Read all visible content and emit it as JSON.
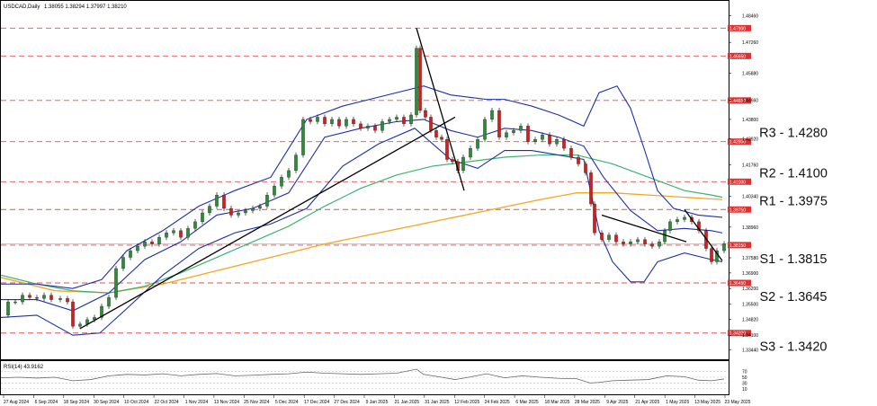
{
  "header": {
    "symbol_timeframe": "USDCAD,Daily",
    "ohlc": "1.38055 1.38294 1.37997 1.38210"
  },
  "rsi_header": "RSI(14) 43.9162",
  "chart_data": {
    "type": "candlestick",
    "x_labels": [
      "27 Aug 2024",
      "6 Sep 2024",
      "18 Sep 2024",
      "30 Sep 2024",
      "10 Oct 2024",
      "22 Oct 2024",
      "1 Nov 2024",
      "13 Nov 2024",
      "25 Nov 2024",
      "5 Dec 2024",
      "17 Dec 2024",
      "27 Dec 2024",
      "9 Jan 2025",
      "21 Jan 2025",
      "31 Jan 2025",
      "12 Feb 2025",
      "24 Feb 2025",
      "6 Mar 2025",
      "18 Mar 2025",
      "28 Mar 2025",
      "9 Apr 2025",
      "21 Apr 2025",
      "1 May 2025",
      "13 May 2025",
      "23 May 2025"
    ],
    "price_axis_ticks": [
      "1.48460",
      "1.47260",
      "1.45880",
      "1.44660",
      "1.43800",
      "1.42920",
      "1.41760",
      "1.40340",
      "1.38960",
      "1.37580",
      "1.36900",
      "1.36200",
      "1.35500",
      "1.34820",
      "1.34100",
      "1.33440"
    ],
    "ylim": [
      1.331,
      1.486
    ],
    "levels": [
      {
        "value": 1.479,
        "tag": "1.47900",
        "label": ""
      },
      {
        "value": 1.4665,
        "tag": "1.46650",
        "label": ""
      },
      {
        "value": 1.4465,
        "tag": "1.44650",
        "label": ""
      },
      {
        "value": 1.428,
        "tag": "1.42800",
        "label": "R3 - 1.4280"
      },
      {
        "value": 1.41,
        "tag": "1.41000",
        "label": "R2 - 1.4100"
      },
      {
        "value": 1.3975,
        "tag": "1.39750",
        "label": "R1 - 1.3975"
      },
      {
        "value": 1.3815,
        "tag": "1.38150",
        "label": "S1 - 1.3815"
      },
      {
        "value": 1.3645,
        "tag": "1.36450",
        "label": "S2 - 1.3645"
      },
      {
        "value": 1.342,
        "tag": "1.34200",
        "label": "S3 - 1.3420"
      }
    ],
    "current_price": 1.3821,
    "close_path": [
      [
        0,
        1.35
      ],
      [
        8,
        1.356
      ],
      [
        16,
        1.356
      ],
      [
        24,
        1.359
      ],
      [
        32,
        1.358
      ],
      [
        40,
        1.3575
      ],
      [
        48,
        1.359
      ],
      [
        56,
        1.357
      ],
      [
        66,
        1.3575
      ],
      [
        74,
        1.356
      ],
      [
        80,
        1.345
      ],
      [
        88,
        1.346
      ],
      [
        96,
        1.348
      ],
      [
        104,
        1.349
      ],
      [
        112,
        1.354
      ],
      [
        120,
        1.358
      ],
      [
        128,
        1.371
      ],
      [
        136,
        1.376
      ],
      [
        144,
        1.379
      ],
      [
        152,
        1.381
      ],
      [
        160,
        1.383
      ],
      [
        168,
        1.382
      ],
      [
        176,
        1.385
      ],
      [
        184,
        1.387
      ],
      [
        192,
        1.388
      ],
      [
        200,
        1.385
      ],
      [
        208,
        1.389
      ],
      [
        216,
        1.392
      ],
      [
        224,
        1.396
      ],
      [
        232,
        1.399
      ],
      [
        240,
        1.404
      ],
      [
        248,
        1.398
      ],
      [
        256,
        1.395
      ],
      [
        264,
        1.396
      ],
      [
        272,
        1.397
      ],
      [
        280,
        1.398
      ],
      [
        288,
        1.399
      ],
      [
        296,
        1.404
      ],
      [
        304,
        1.408
      ],
      [
        312,
        1.412
      ],
      [
        320,
        1.415
      ],
      [
        328,
        1.422
      ],
      [
        336,
        1.438
      ],
      [
        344,
        1.437
      ],
      [
        352,
        1.439
      ],
      [
        360,
        1.436
      ],
      [
        368,
        1.438
      ],
      [
        376,
        1.435
      ],
      [
        384,
        1.438
      ],
      [
        392,
        1.436
      ],
      [
        400,
        1.434
      ],
      [
        408,
        1.435
      ],
      [
        416,
        1.433
      ],
      [
        424,
        1.437
      ],
      [
        432,
        1.438
      ],
      [
        440,
        1.439
      ],
      [
        448,
        1.436
      ],
      [
        456,
        1.44
      ],
      [
        462,
        1.47
      ],
      [
        466,
        1.442
      ],
      [
        472,
        1.439
      ],
      [
        478,
        1.433
      ],
      [
        484,
        1.43
      ],
      [
        490,
        1.429
      ],
      [
        496,
        1.42
      ],
      [
        502,
        1.419
      ],
      [
        508,
        1.415
      ],
      [
        514,
        1.421
      ],
      [
        522,
        1.425
      ],
      [
        530,
        1.429
      ],
      [
        538,
        1.438
      ],
      [
        546,
        1.442
      ],
      [
        554,
        1.43
      ],
      [
        562,
        1.432
      ],
      [
        570,
        1.433
      ],
      [
        578,
        1.435
      ],
      [
        586,
        1.428
      ],
      [
        594,
        1.429
      ],
      [
        602,
        1.431
      ],
      [
        610,
        1.427
      ],
      [
        618,
        1.429
      ],
      [
        626,
        1.425
      ],
      [
        634,
        1.421
      ],
      [
        642,
        1.418
      ],
      [
        650,
        1.414
      ],
      [
        656,
        1.4
      ],
      [
        660,
        1.387
      ],
      [
        668,
        1.384
      ],
      [
        676,
        1.386
      ],
      [
        684,
        1.383
      ],
      [
        692,
        1.382
      ],
      [
        700,
        1.383
      ],
      [
        708,
        1.384
      ],
      [
        716,
        1.382
      ],
      [
        724,
        1.381
      ],
      [
        732,
        1.383
      ],
      [
        738,
        1.388
      ],
      [
        744,
        1.392
      ],
      [
        752,
        1.393
      ],
      [
        760,
        1.394
      ],
      [
        768,
        1.392
      ],
      [
        776,
        1.388
      ],
      [
        784,
        1.38
      ],
      [
        790,
        1.374
      ],
      [
        796,
        1.379
      ],
      [
        804,
        1.3821
      ]
    ],
    "bollinger_upper": [
      [
        0,
        1.364
      ],
      [
        40,
        1.364
      ],
      [
        80,
        1.362
      ],
      [
        112,
        1.366
      ],
      [
        140,
        1.379
      ],
      [
        180,
        1.388
      ],
      [
        220,
        1.399
      ],
      [
        260,
        1.406
      ],
      [
        300,
        1.412
      ],
      [
        340,
        1.438
      ],
      [
        380,
        1.444
      ],
      [
        420,
        1.448
      ],
      [
        470,
        1.453
      ],
      [
        500,
        1.449
      ],
      [
        520,
        1.448
      ],
      [
        540,
        1.447
      ],
      [
        560,
        1.447
      ],
      [
        590,
        1.444
      ],
      [
        620,
        1.44
      ],
      [
        648,
        1.435
      ],
      [
        665,
        1.45
      ],
      [
        685,
        1.453
      ],
      [
        700,
        1.443
      ],
      [
        715,
        1.425
      ],
      [
        730,
        1.406
      ],
      [
        748,
        1.398
      ],
      [
        775,
        1.395
      ],
      [
        802,
        1.394
      ]
    ],
    "bollinger_mid": [
      [
        0,
        1.357
      ],
      [
        40,
        1.357
      ],
      [
        80,
        1.352
      ],
      [
        120,
        1.36
      ],
      [
        160,
        1.375
      ],
      [
        200,
        1.383
      ],
      [
        240,
        1.395
      ],
      [
        280,
        1.398
      ],
      [
        320,
        1.405
      ],
      [
        360,
        1.43
      ],
      [
        400,
        1.434
      ],
      [
        440,
        1.437
      ],
      [
        470,
        1.438
      ],
      [
        500,
        1.433
      ],
      [
        530,
        1.43
      ],
      [
        560,
        1.434
      ],
      [
        590,
        1.433
      ],
      [
        620,
        1.43
      ],
      [
        648,
        1.426
      ],
      [
        670,
        1.412
      ],
      [
        700,
        1.397
      ],
      [
        730,
        1.388
      ],
      [
        760,
        1.389
      ],
      [
        790,
        1.388
      ],
      [
        802,
        1.387
      ]
    ],
    "bollinger_lower": [
      [
        0,
        1.349
      ],
      [
        40,
        1.35
      ],
      [
        80,
        1.341
      ],
      [
        110,
        1.342
      ],
      [
        140,
        1.353
      ],
      [
        180,
        1.368
      ],
      [
        220,
        1.38
      ],
      [
        260,
        1.387
      ],
      [
        300,
        1.391
      ],
      [
        340,
        1.398
      ],
      [
        380,
        1.417
      ],
      [
        420,
        1.427
      ],
      [
        460,
        1.434
      ],
      [
        500,
        1.42
      ],
      [
        530,
        1.416
      ],
      [
        560,
        1.424
      ],
      [
        590,
        1.424
      ],
      [
        620,
        1.422
      ],
      [
        648,
        1.42
      ],
      [
        665,
        1.388
      ],
      [
        680,
        1.374
      ],
      [
        700,
        1.365
      ],
      [
        715,
        1.365
      ],
      [
        730,
        1.374
      ],
      [
        760,
        1.378
      ],
      [
        790,
        1.375
      ],
      [
        802,
        1.374
      ]
    ],
    "ma_green": [
      [
        0,
        1.368
      ],
      [
        40,
        1.364
      ],
      [
        80,
        1.361
      ],
      [
        120,
        1.36
      ],
      [
        160,
        1.363
      ],
      [
        200,
        1.369
      ],
      [
        240,
        1.376
      ],
      [
        280,
        1.383
      ],
      [
        320,
        1.39
      ],
      [
        360,
        1.399
      ],
      [
        400,
        1.407
      ],
      [
        440,
        1.413
      ],
      [
        480,
        1.417
      ],
      [
        520,
        1.419
      ],
      [
        560,
        1.421
      ],
      [
        600,
        1.422
      ],
      [
        640,
        1.422
      ],
      [
        680,
        1.418
      ],
      [
        720,
        1.412
      ],
      [
        760,
        1.406
      ],
      [
        790,
        1.404
      ],
      [
        802,
        1.403
      ]
    ],
    "ma_orange": [
      [
        0,
        1.367
      ],
      [
        60,
        1.361
      ],
      [
        120,
        1.36
      ],
      [
        180,
        1.364
      ],
      [
        240,
        1.37
      ],
      [
        300,
        1.376
      ],
      [
        360,
        1.382
      ],
      [
        420,
        1.387
      ],
      [
        480,
        1.392
      ],
      [
        540,
        1.397
      ],
      [
        600,
        1.402
      ],
      [
        640,
        1.405
      ],
      [
        680,
        1.405
      ],
      [
        720,
        1.404
      ],
      [
        760,
        1.403
      ],
      [
        802,
        1.402
      ]
    ],
    "trendlines": [
      [
        [
          88,
          1.344
        ],
        [
          505,
          1.439
        ]
      ],
      [
        [
          462,
          1.479
        ],
        [
          515,
          1.406
        ]
      ],
      [
        [
          668,
          1.395
        ],
        [
          762,
          1.383
        ]
      ],
      [
        [
          760,
          1.3975
        ],
        [
          802,
          1.3745
        ]
      ]
    ],
    "rsi": {
      "ticks": [
        70,
        50,
        30,
        10
      ],
      "ylim": [
        0,
        100
      ],
      "values": [
        [
          0,
          48
        ],
        [
          20,
          50
        ],
        [
          40,
          47
        ],
        [
          60,
          50
        ],
        [
          80,
          38
        ],
        [
          100,
          42
        ],
        [
          120,
          55
        ],
        [
          140,
          60
        ],
        [
          160,
          58
        ],
        [
          180,
          62
        ],
        [
          200,
          55
        ],
        [
          220,
          60
        ],
        [
          240,
          63
        ],
        [
          260,
          55
        ],
        [
          280,
          57
        ],
        [
          300,
          60
        ],
        [
          320,
          62
        ],
        [
          340,
          68
        ],
        [
          360,
          64
        ],
        [
          380,
          62
        ],
        [
          400,
          60
        ],
        [
          420,
          62
        ],
        [
          440,
          64
        ],
        [
          462,
          78
        ],
        [
          470,
          60
        ],
        [
          490,
          50
        ],
        [
          505,
          42
        ],
        [
          520,
          50
        ],
        [
          540,
          62
        ],
        [
          560,
          48
        ],
        [
          580,
          55
        ],
        [
          600,
          50
        ],
        [
          620,
          46
        ],
        [
          640,
          45
        ],
        [
          655,
          30
        ],
        [
          665,
          32
        ],
        [
          680,
          38
        ],
        [
          700,
          40
        ],
        [
          720,
          42
        ],
        [
          740,
          55
        ],
        [
          760,
          52
        ],
        [
          775,
          40
        ],
        [
          790,
          38
        ],
        [
          804,
          44
        ]
      ]
    }
  }
}
